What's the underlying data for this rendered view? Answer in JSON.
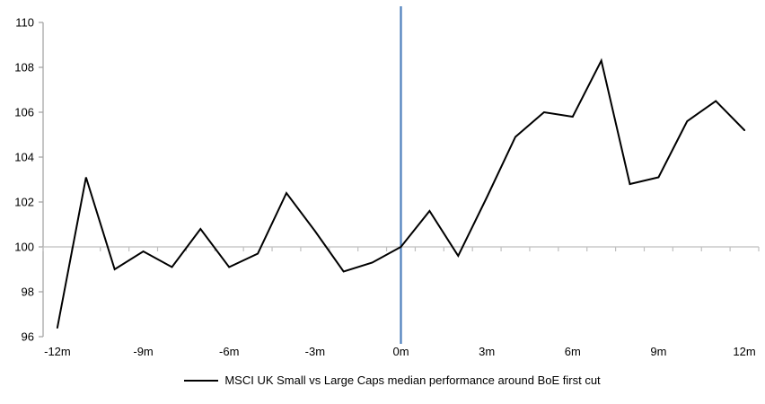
{
  "chart_data": {
    "type": "line",
    "title": "",
    "xlabel": "",
    "ylabel": "",
    "x": [
      -12,
      -11,
      -10,
      -9,
      -8,
      -7,
      -6,
      -5,
      -4,
      -3,
      -2,
      -1,
      0,
      1,
      2,
      3,
      4,
      5,
      6,
      7,
      8,
      9,
      10,
      11,
      12
    ],
    "series": [
      {
        "name": "MSCI UK Small vs Large Caps median performance around BoE first cut",
        "color": "#000000",
        "values": [
          96.4,
          103.1,
          99.0,
          99.8,
          99.1,
          100.8,
          99.1,
          99.7,
          102.4,
          100.7,
          98.9,
          99.3,
          100.0,
          101.6,
          99.6,
          102.2,
          104.9,
          106.0,
          105.8,
          108.3,
          102.8,
          103.1,
          105.6,
          106.5,
          105.2
        ]
      }
    ],
    "ylim": [
      96,
      110
    ],
    "y_ticks": [
      110,
      108,
      106,
      104,
      102,
      100,
      98,
      96
    ],
    "x_tick_labels": [
      {
        "month": -12,
        "label": "-12m"
      },
      {
        "month": -9,
        "label": "-9m"
      },
      {
        "month": -6,
        "label": "-6m"
      },
      {
        "month": -3,
        "label": "-3m"
      },
      {
        "month": 0,
        "label": "0m"
      },
      {
        "month": 3,
        "label": "3m"
      },
      {
        "month": 6,
        "label": "6m"
      },
      {
        "month": 9,
        "label": "9m"
      },
      {
        "month": 12,
        "label": "12m"
      }
    ],
    "category_axis_at": 100,
    "event_line": {
      "at_month": 0,
      "color": "#4F81BD"
    },
    "grid": "off",
    "legend_position": "bottom",
    "colors": {
      "y_axis": "#A6A6A6",
      "category_axis": "#BFBFBF",
      "series": "#000000",
      "event_line": "#4F81BD",
      "label_text": "#000000",
      "background": "#FFFFFF"
    }
  },
  "legend": {
    "label": "MSCI UK Small vs Large Caps median performance around BoE first cut"
  }
}
